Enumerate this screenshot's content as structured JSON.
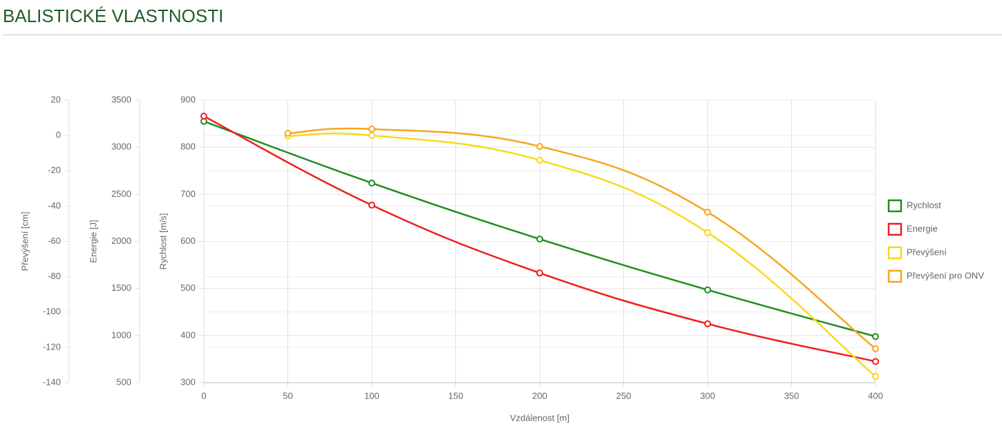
{
  "page_title": "BALISTICKÉ VLASTNOSTI",
  "chart_data": {
    "type": "line",
    "xlabel": "Vzdálenost [m]",
    "xlim": [
      0,
      400
    ],
    "xticks": [
      0,
      50,
      100,
      150,
      200,
      250,
      300,
      350,
      400
    ],
    "ylabel": "Rychlost [m/s]",
    "ylim": [
      300,
      900
    ],
    "yticks": [
      300,
      400,
      500,
      600,
      700,
      800,
      900
    ],
    "y2label": "Energie [J]",
    "y2lim": [
      500,
      3500
    ],
    "y2ticks": [
      500,
      1000,
      1500,
      2000,
      2500,
      3000,
      3500
    ],
    "y3label": "Převýšení [cm]",
    "y3lim": [
      -140,
      20
    ],
    "y3ticks": [
      -140,
      -120,
      -100,
      -80,
      -60,
      -40,
      -20,
      0,
      20
    ],
    "grid": true,
    "legend": "right",
    "series": [
      {
        "name": "Rychlost",
        "color": "#1f8c1f",
        "x": [
          0,
          100,
          200,
          300,
          400
        ],
        "values": [
          855,
          724,
          605,
          497,
          398
        ]
      },
      {
        "name": "Energie",
        "color": "#ee1d1d",
        "axis": "y2",
        "x": [
          0,
          100,
          200,
          300,
          400
        ],
        "values": [
          3330,
          2385,
          1665,
          1125,
          725
        ]
      },
      {
        "name": "Převýšení",
        "color": "#f7d91c",
        "axis": "y3",
        "x": [
          50,
          100,
          200,
          300,
          400
        ],
        "values": [
          -0.3,
          0,
          -14,
          -55,
          -136.5
        ]
      },
      {
        "name": "Převýšení pro ONV",
        "color": "#f7a61c",
        "axis": "y3",
        "x": [
          50,
          100,
          200,
          300,
          400
        ],
        "values": [
          1.2,
          3.6,
          -6.2,
          -43.4,
          -120.8
        ]
      }
    ]
  }
}
